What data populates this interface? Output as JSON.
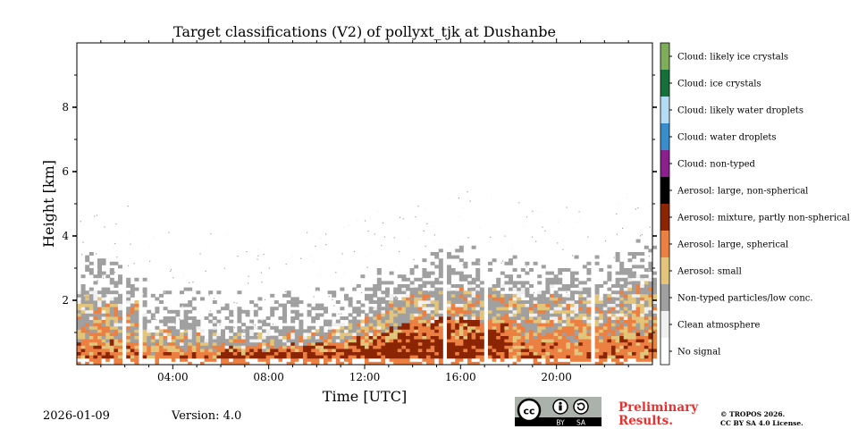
{
  "chart_data": {
    "type": "heatmap",
    "title": "Target classifications (V2) of pollyxt_tjk at Dushanbe",
    "xlabel": "Time [UTC]",
    "ylabel": "Height [km]",
    "xlim": [
      0,
      24
    ],
    "ylim": [
      0,
      10
    ],
    "x_ticks": [
      {
        "value": 4,
        "label": "04:00"
      },
      {
        "value": 8,
        "label": "08:00"
      },
      {
        "value": 12,
        "label": "12:00"
      },
      {
        "value": 16,
        "label": "16:00"
      },
      {
        "value": 20,
        "label": "20:00"
      }
    ],
    "y_ticks": [
      {
        "value": 2,
        "label": "2"
      },
      {
        "value": 4,
        "label": "4"
      },
      {
        "value": 6,
        "label": "6"
      },
      {
        "value": 8,
        "label": "8"
      }
    ],
    "classes": [
      {
        "label": "No signal",
        "color": "#ffffff"
      },
      {
        "label": "Clean atmosphere",
        "color": "#f0f0f0"
      },
      {
        "label": "Non-typed particles/low conc.",
        "color": "#a0a0a0"
      },
      {
        "label": "Aerosol: small",
        "color": "#e2c47a"
      },
      {
        "label": "Aerosol: large, spherical",
        "color": "#ec8043"
      },
      {
        "label": "Aerosol: mixture, partly non-spherical",
        "color": "#8b2503"
      },
      {
        "label": "Aerosol: large, non-spherical",
        "color": "#000000"
      },
      {
        "label": "Cloud: non-typed",
        "color": "#8b1f8d"
      },
      {
        "label": "Cloud: water droplets",
        "color": "#3a8dcc"
      },
      {
        "label": "Cloud: likely water droplets",
        "color": "#b5dcf5"
      },
      {
        "label": "Cloud: ice crystals",
        "color": "#16703a"
      },
      {
        "label": "Cloud: likely ice crystals",
        "color": "#7fae5a"
      }
    ],
    "aerosol_layer_top_km": [
      {
        "time": 0,
        "height": 2.1
      },
      {
        "time": 2.5,
        "height": 1.9
      },
      {
        "time": 3,
        "height": 1.0
      },
      {
        "time": 6,
        "height": 0.9
      },
      {
        "time": 8,
        "height": 0.8
      },
      {
        "time": 11,
        "height": 1.1
      },
      {
        "time": 12.5,
        "height": 1.6
      },
      {
        "time": 14,
        "height": 2.3
      },
      {
        "time": 17,
        "height": 2.2
      },
      {
        "time": 20,
        "height": 2.0
      },
      {
        "time": 22,
        "height": 2.1
      },
      {
        "time": 24,
        "height": 2.6
      }
    ],
    "data_gaps_hours": [
      2.0,
      2.6,
      15.3,
      17.0,
      21.45,
      21.55
    ]
  },
  "footer": {
    "date": "2026-01-09",
    "version": "Version: 4.0",
    "preliminary_line1": "Preliminary",
    "preliminary_line2": "Results.",
    "copyright_line1": "© TROPOS 2026.",
    "copyright_line2": "CC BY SA 4.0 License.",
    "badge_cc": "cc",
    "badge_by": "BY",
    "badge_sa": "SA"
  }
}
